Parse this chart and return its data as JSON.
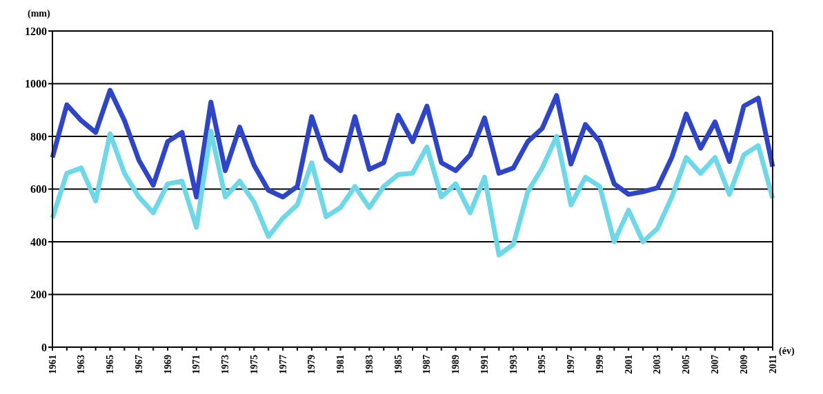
{
  "chart_data": {
    "type": "line",
    "ylabel": "(mm)",
    "xlabel": "(év)",
    "categories": [
      "1961",
      null,
      "1963",
      null,
      "1965",
      null,
      "1967",
      null,
      "1969",
      null,
      "1971",
      null,
      "1973",
      null,
      "1975",
      null,
      "1977",
      null,
      "1979",
      null,
      "1981",
      null,
      "1983",
      null,
      "1985",
      null,
      "1987",
      null,
      "1989",
      null,
      "1991",
      null,
      "1993",
      null,
      "1995",
      null,
      "1997",
      null,
      "1999",
      null,
      "2001",
      null,
      "2003",
      null,
      "2005",
      null,
      "2007",
      null,
      "2009",
      null,
      "2011"
    ],
    "series": [
      {
        "color": "#2e45c8",
        "values": [
          720,
          920,
          860,
          815,
          975,
          860,
          710,
          615,
          780,
          815,
          570,
          930,
          670,
          835,
          690,
          595,
          570,
          610,
          875,
          715,
          670,
          875,
          675,
          700,
          880,
          780,
          915,
          700,
          670,
          730,
          870,
          660,
          680,
          780,
          830,
          955,
          695,
          845,
          780,
          620,
          580,
          590,
          605,
          720,
          885,
          755,
          855,
          705,
          915,
          945,
          685
        ]
      },
      {
        "color": "#6fd8e8",
        "values": [
          490,
          660,
          680,
          555,
          810,
          660,
          570,
          510,
          620,
          630,
          455,
          820,
          570,
          630,
          550,
          420,
          490,
          540,
          700,
          495,
          530,
          610,
          530,
          610,
          655,
          660,
          760,
          570,
          620,
          510,
          645,
          350,
          390,
          590,
          680,
          800,
          540,
          645,
          610,
          400,
          520,
          400,
          450,
          570,
          720,
          660,
          720,
          580,
          730,
          765,
          565
        ]
      }
    ],
    "ylim": [
      0,
      1200
    ],
    "yticks": [
      0,
      200,
      400,
      600,
      800,
      1000,
      1200
    ],
    "grid": "y",
    "legend": false,
    "marker": "none",
    "line_style": "solid"
  }
}
